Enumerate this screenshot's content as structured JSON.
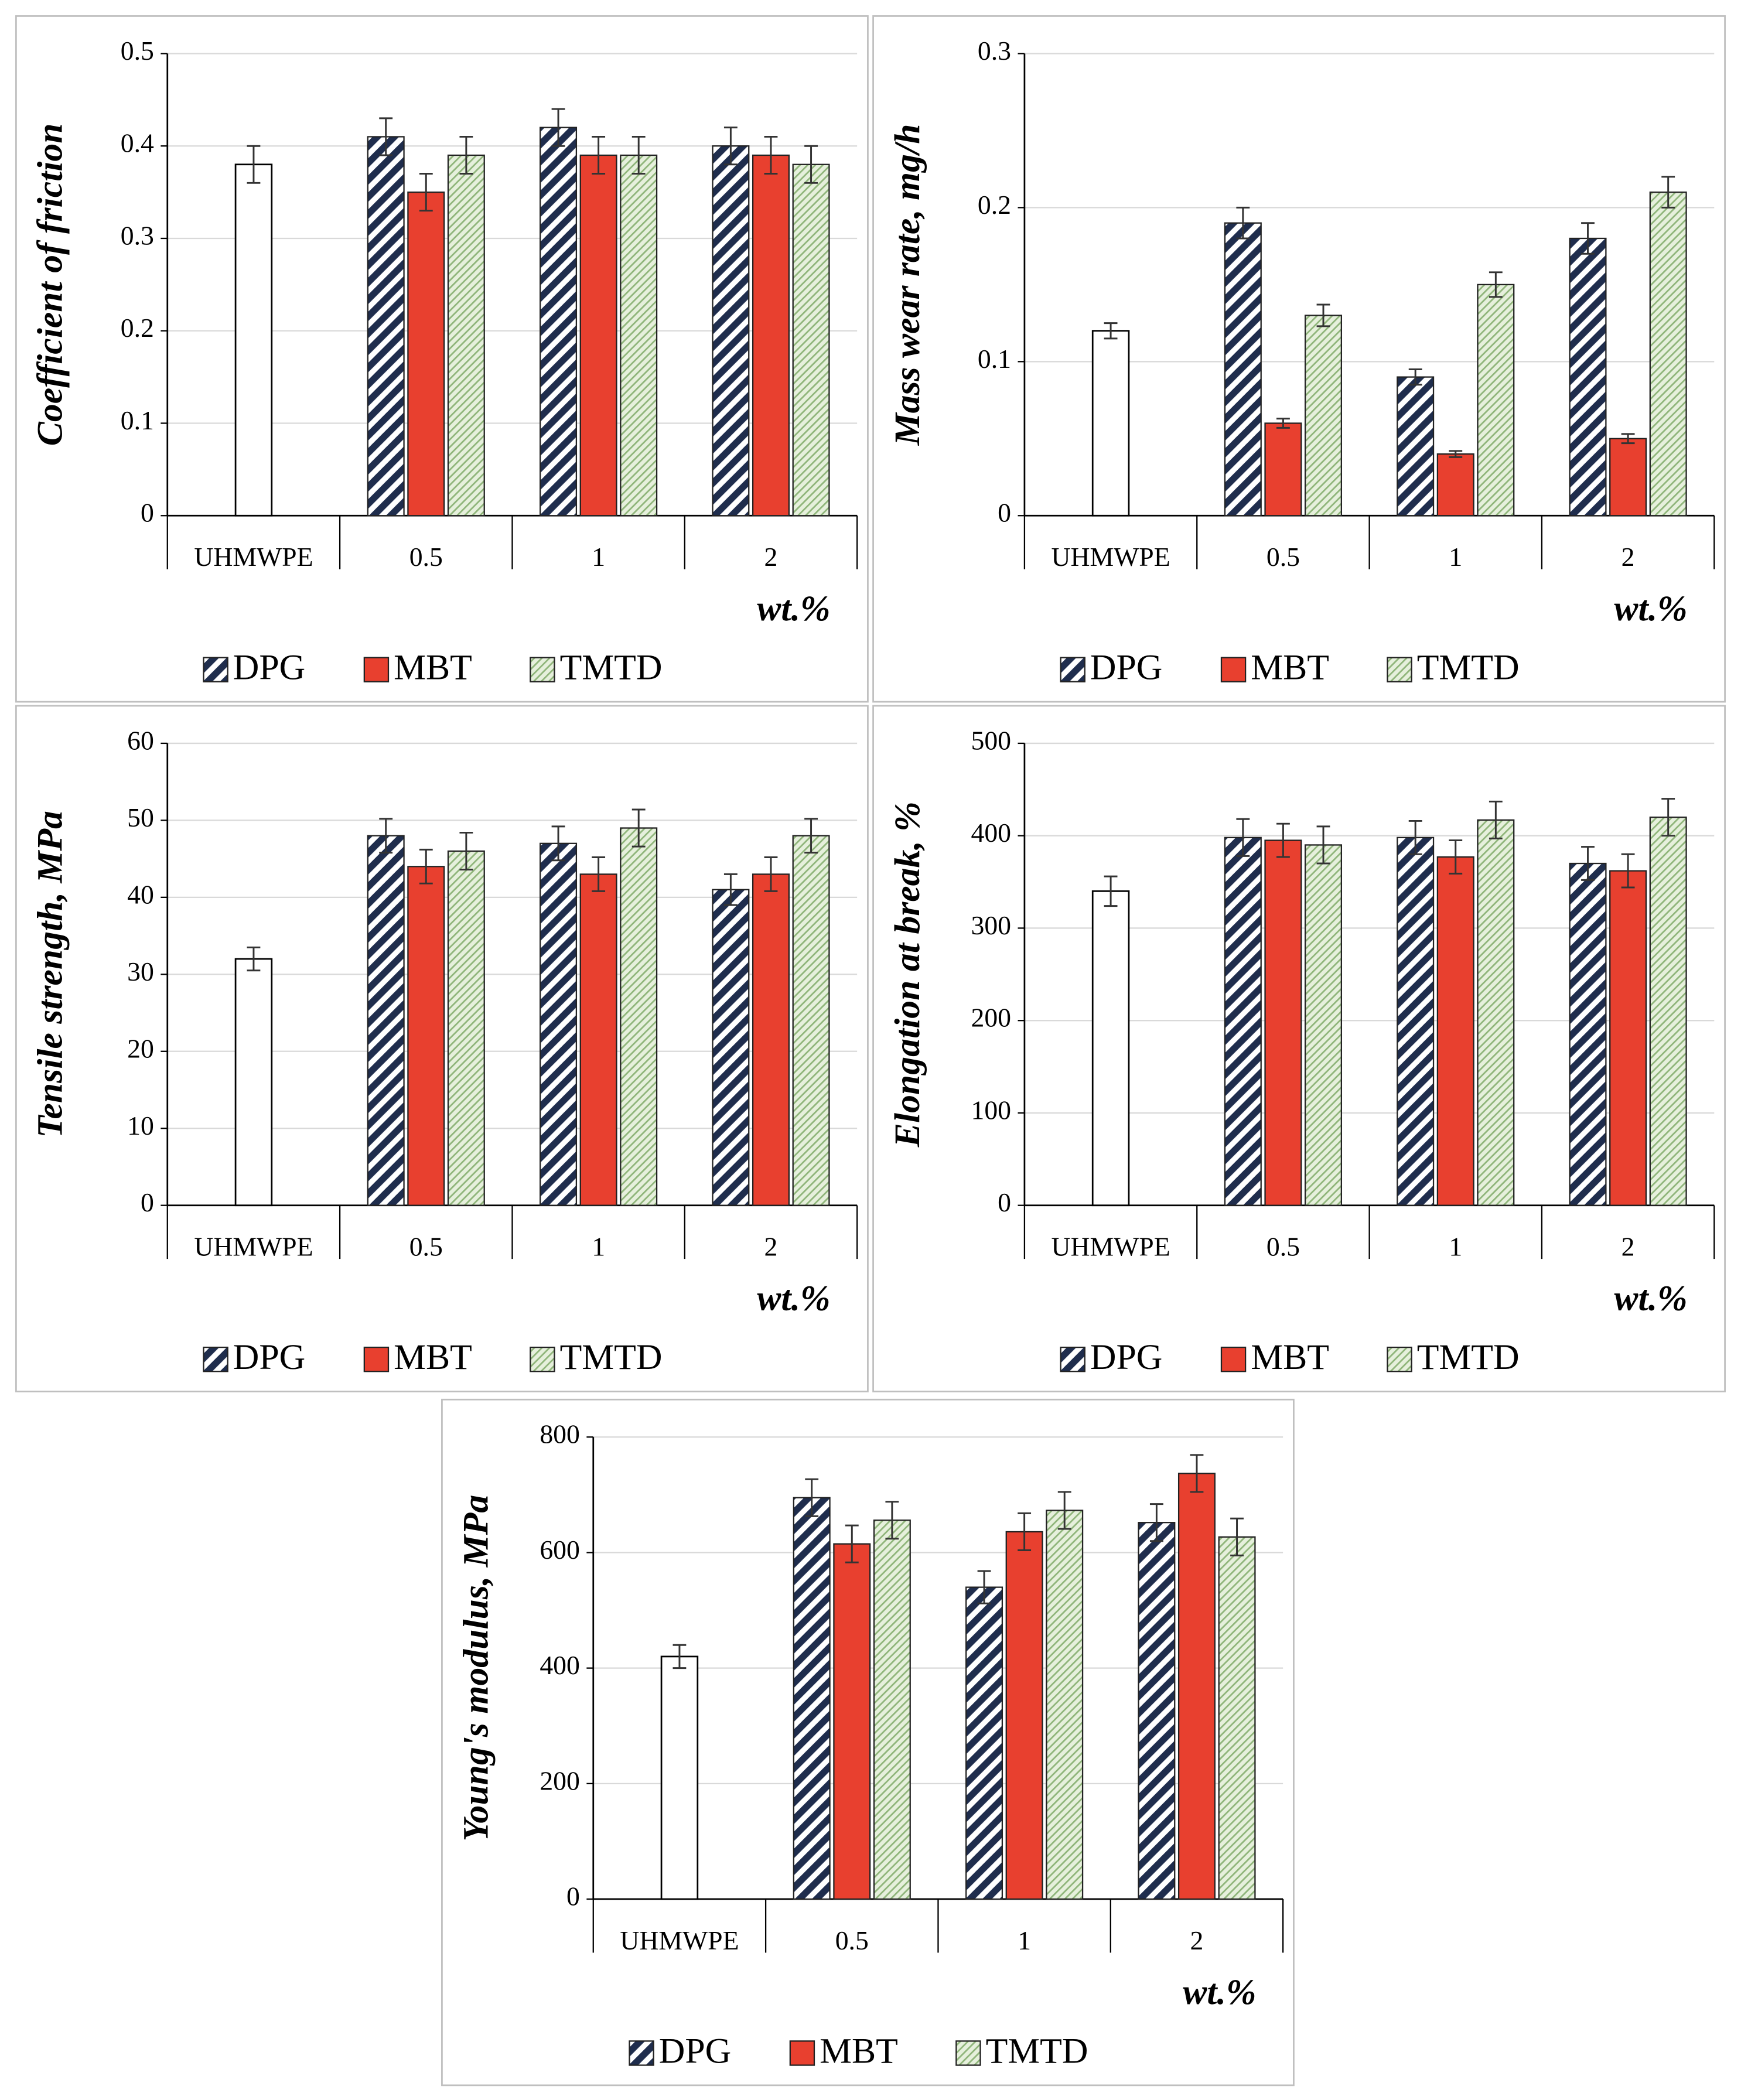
{
  "chart_data": [
    {
      "type": "bar",
      "ylabel": "Coefficient of friction",
      "xlabel": "wt.%",
      "categories": [
        "UHMWPE",
        "0.5",
        "1",
        "2"
      ],
      "reference_value": 0.38,
      "reference_error": 0.02,
      "series": [
        {
          "name": "DPG",
          "color": "#1f2d4d",
          "values": [
            null,
            0.41,
            0.42,
            0.4
          ],
          "errors": [
            null,
            0.02,
            0.02,
            0.02
          ]
        },
        {
          "name": "MBT",
          "color": "#e8402f",
          "values": [
            null,
            0.35,
            0.39,
            0.39
          ],
          "errors": [
            null,
            0.02,
            0.02,
            0.02
          ]
        },
        {
          "name": "TMTD",
          "color": "#8fb57a",
          "values": [
            null,
            0.39,
            0.39,
            0.38
          ],
          "errors": [
            null,
            0.02,
            0.02,
            0.02
          ]
        }
      ],
      "ylim": [
        0,
        0.5
      ],
      "yticks": [
        0,
        0.1,
        0.2,
        0.3,
        0.4,
        0.5
      ],
      "grid": true
    },
    {
      "type": "bar",
      "ylabel": "Mass wear rate, mg/h",
      "xlabel": "wt.%",
      "categories": [
        "UHMWPE",
        "0.5",
        "1",
        "2"
      ],
      "reference_value": 0.12,
      "reference_error": 0.005,
      "series": [
        {
          "name": "DPG",
          "color": "#1f2d4d",
          "values": [
            null,
            0.19,
            0.09,
            0.18
          ],
          "errors": [
            null,
            0.01,
            0.005,
            0.01
          ]
        },
        {
          "name": "MBT",
          "color": "#e8402f",
          "values": [
            null,
            0.06,
            0.04,
            0.05
          ],
          "errors": [
            null,
            0.003,
            0.002,
            0.003
          ]
        },
        {
          "name": "TMTD",
          "color": "#8fb57a",
          "values": [
            null,
            0.13,
            0.15,
            0.21
          ],
          "errors": [
            null,
            0.007,
            0.008,
            0.01
          ]
        }
      ],
      "ylim": [
        0,
        0.3
      ],
      "yticks": [
        0,
        0.1,
        0.2,
        0.3
      ],
      "grid": true
    },
    {
      "type": "bar",
      "ylabel": "Tensile strength, MPa",
      "xlabel": "wt.%",
      "categories": [
        "UHMWPE",
        "0.5",
        "1",
        "2"
      ],
      "reference_value": 32,
      "reference_error": 1.5,
      "series": [
        {
          "name": "DPG",
          "color": "#1f2d4d",
          "values": [
            null,
            48,
            47,
            41
          ],
          "errors": [
            null,
            2.2,
            2.2,
            2
          ]
        },
        {
          "name": "MBT",
          "color": "#e8402f",
          "values": [
            null,
            44,
            43,
            43
          ],
          "errors": [
            null,
            2.2,
            2.2,
            2.2
          ]
        },
        {
          "name": "TMTD",
          "color": "#8fb57a",
          "values": [
            null,
            46,
            49,
            48
          ],
          "errors": [
            null,
            2.4,
            2.4,
            2.2
          ]
        }
      ],
      "ylim": [
        0,
        60
      ],
      "yticks": [
        0,
        10,
        20,
        30,
        40,
        50,
        60
      ],
      "grid": true
    },
    {
      "type": "bar",
      "ylabel": "Elongation at break, %",
      "xlabel": "wt.%",
      "categories": [
        "UHMWPE",
        "0.5",
        "1",
        "2"
      ],
      "reference_value": 340,
      "reference_error": 16,
      "series": [
        {
          "name": "DPG",
          "color": "#1f2d4d",
          "values": [
            null,
            398,
            398,
            370
          ],
          "errors": [
            null,
            20,
            18,
            18
          ]
        },
        {
          "name": "MBT",
          "color": "#e8402f",
          "values": [
            null,
            395,
            377,
            362
          ],
          "errors": [
            null,
            18,
            18,
            18
          ]
        },
        {
          "name": "TMTD",
          "color": "#8fb57a",
          "values": [
            null,
            390,
            417,
            420
          ],
          "errors": [
            null,
            20,
            20,
            20
          ]
        }
      ],
      "ylim": [
        0,
        500
      ],
      "yticks": [
        0,
        100,
        200,
        300,
        400,
        500
      ],
      "grid": true
    },
    {
      "type": "bar",
      "ylabel": "Young's modulus, MPa",
      "xlabel": "wt.%",
      "categories": [
        "UHMWPE",
        "0.5",
        "1",
        "2"
      ],
      "reference_value": 420,
      "reference_error": 20,
      "series": [
        {
          "name": "DPG",
          "color": "#1f2d4d",
          "values": [
            null,
            695,
            540,
            652
          ],
          "errors": [
            null,
            32,
            28,
            32
          ]
        },
        {
          "name": "MBT",
          "color": "#e8402f",
          "values": [
            null,
            615,
            636,
            737
          ],
          "errors": [
            null,
            32,
            32,
            32
          ]
        },
        {
          "name": "TMTD",
          "color": "#8fb57a",
          "values": [
            null,
            656,
            673,
            627
          ],
          "errors": [
            null,
            32,
            32,
            32
          ]
        }
      ],
      "ylim": [
        0,
        800
      ],
      "yticks": [
        0,
        200,
        400,
        600,
        800
      ],
      "grid": true
    }
  ]
}
